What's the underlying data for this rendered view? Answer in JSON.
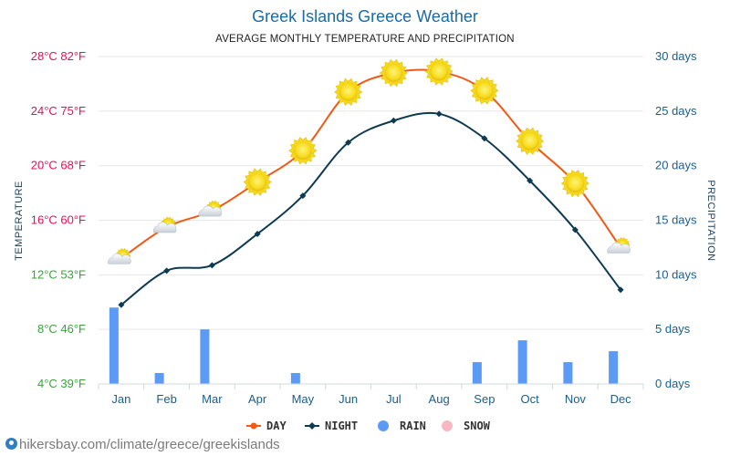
{
  "chart_data": {
    "type": "line",
    "title": "Greek Islands Greece Weather",
    "subtitle": "AVERAGE MONTHLY TEMPERATURE AND PRECIPITATION",
    "ylabel_left": "TEMPERATURE",
    "ylabel_right": "PRECIPITATION",
    "categories": [
      "Jan",
      "Feb",
      "Mar",
      "Apr",
      "May",
      "Jun",
      "Jul",
      "Aug",
      "Sep",
      "Oct",
      "Nov",
      "Dec"
    ],
    "y_left": {
      "ticks": [
        4,
        8,
        12,
        16,
        20,
        24,
        28
      ],
      "labels": [
        "4°C 39°F",
        "8°C 46°F",
        "12°C 53°F",
        "16°C 60°F",
        "20°C 68°F",
        "24°C 75°F",
        "28°C 82°F"
      ],
      "colors": [
        "#3aa13a",
        "#3aa13a",
        "#3aa13a",
        "#e0105a",
        "#e0105a",
        "#e0105a",
        "#e0105a"
      ],
      "range": [
        4,
        28
      ]
    },
    "y_right": {
      "ticks": [
        0,
        5,
        10,
        15,
        20,
        25,
        30
      ],
      "labels": [
        "0 days",
        "5 days",
        "10 days",
        "15 days",
        "20 days",
        "25 days",
        "30 days"
      ],
      "range": [
        0,
        30
      ]
    },
    "series": [
      {
        "name": "DAY",
        "color": "#f05a14",
        "values": [
          13.2,
          15.5,
          16.7,
          18.8,
          21.1,
          25.4,
          26.8,
          26.9,
          25.5,
          21.8,
          18.7,
          14.0
        ]
      },
      {
        "name": "NIGHT",
        "color": "#0e3a52",
        "values": [
          9.8,
          12.3,
          12.7,
          15.0,
          17.8,
          21.7,
          23.3,
          23.8,
          22.0,
          18.9,
          15.3,
          10.9
        ]
      },
      {
        "name": "RAIN",
        "color": "#5b9bf5",
        "values": [
          7,
          1,
          5,
          0,
          1,
          0,
          0,
          0,
          2,
          4,
          2,
          3
        ]
      },
      {
        "name": "SNOW",
        "color": "#f7b8c4",
        "values": [
          0,
          0,
          0,
          0,
          0,
          0,
          0,
          0,
          0,
          0,
          0,
          0
        ]
      }
    ],
    "day_icons": [
      "cloud-sun-icon",
      "cloud-sun-icon",
      "cloud-sun-icon",
      "sun-icon",
      "sun-icon",
      "sun-icon",
      "sun-icon",
      "sun-icon",
      "sun-icon",
      "sun-icon",
      "sun-icon",
      "cloud-sun-icon"
    ],
    "grid": true,
    "legend_position": "bottom"
  },
  "footer": {
    "text": "hikersbay.com/climate/greece/greekislands"
  }
}
